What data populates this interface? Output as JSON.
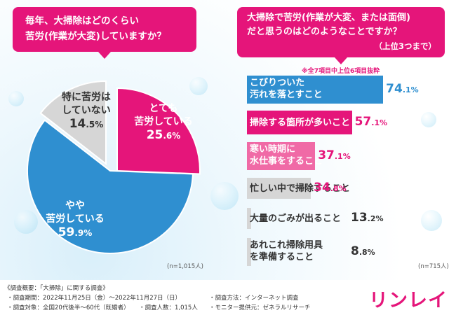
{
  "left_panel": {
    "question_line1": "毎年、大掃除はどのくらい",
    "question_line2": "苦労(作業が大変)していますか？",
    "sample_size": "(n=1,015人)"
  },
  "right_panel": {
    "question_line1": "大掃除で苦労(作業が大変、または面倒)",
    "question_line2": "だと思うのはどのようなことですか？",
    "subnote": "（上位3つまで）",
    "selection_note": "※全7項目中上位6項目抜粋",
    "sample_size": "(n=715人)"
  },
  "colors": {
    "pink": "#e5157a",
    "blue": "#2f8fd0",
    "gray": "#d6d6d6"
  },
  "chart_data": [
    {
      "type": "pie",
      "title": "毎年、大掃除はどのくらい苦労(作業が大変)していますか？",
      "slices": [
        {
          "label_line1": "とても",
          "label_line2": "苦労している",
          "value": 25.6,
          "value_int": "25",
          "value_dec": ".6%",
          "color": "#e5157a"
        },
        {
          "label_line1": "やや",
          "label_line2": "苦労している",
          "value": 59.9,
          "value_int": "59",
          "value_dec": ".9%",
          "color": "#2f8fd0"
        },
        {
          "label_line1": "特に苦労は",
          "label_line2": "していない",
          "value": 14.5,
          "value_int": "14",
          "value_dec": ".5%",
          "color": "#d6d6d6"
        }
      ]
    },
    {
      "type": "bar",
      "title": "大掃除で苦労(作業が大変、または面倒)だと思うのはどのようなことですか？",
      "bars": [
        {
          "line1": "こびりついた",
          "line2": "汚れを落とすこと",
          "value": 74.1,
          "value_int": "74",
          "value_dec": ".1%",
          "color": "#2f8fd0",
          "text_color": "#ffffff"
        },
        {
          "line1": "掃除する箇所が多いこと",
          "line2": "",
          "value": 57.1,
          "value_int": "57",
          "value_dec": ".1%",
          "color": "#e5157a",
          "text_color": "#ffffff"
        },
        {
          "line1": "寒い時期に",
          "line2": "水仕事をすること",
          "value": 37.1,
          "value_int": "37",
          "value_dec": ".1%",
          "color": "#f06aa6",
          "text_color": "#ffffff"
        },
        {
          "line1": "忙しい中で掃除すること",
          "line2": "",
          "value": 34.8,
          "value_int": "34",
          "value_dec": ".8%",
          "color": "#d6d6d6",
          "text_color": "#333333"
        },
        {
          "line1": "大量のごみが出ること",
          "line2": "",
          "value": 13.2,
          "value_int": "13",
          "value_dec": ".2%",
          "color": "#d6d6d6",
          "text_color": "#333333"
        },
        {
          "line1": "あれこれ掃除用具",
          "line2": "を準備すること",
          "value": 8.8,
          "value_int": "8",
          "value_dec": ".8%",
          "color": "#d6d6d6",
          "text_color": "#333333"
        }
      ]
    }
  ],
  "footer": {
    "overview": "《調査概要：「大掃除」に関する調査》",
    "period": "・調査期間：2022年11月25日（金）～2022年11月27日（日）",
    "method": "・調査方法：インターネット調査",
    "target": "・調査対象：全国20代後半～60代（既婚者）",
    "people": "・調査人数：1,015人",
    "provider": "・モニター提供元：ゼネラルリサーチ",
    "logo": "リンレイ"
  }
}
